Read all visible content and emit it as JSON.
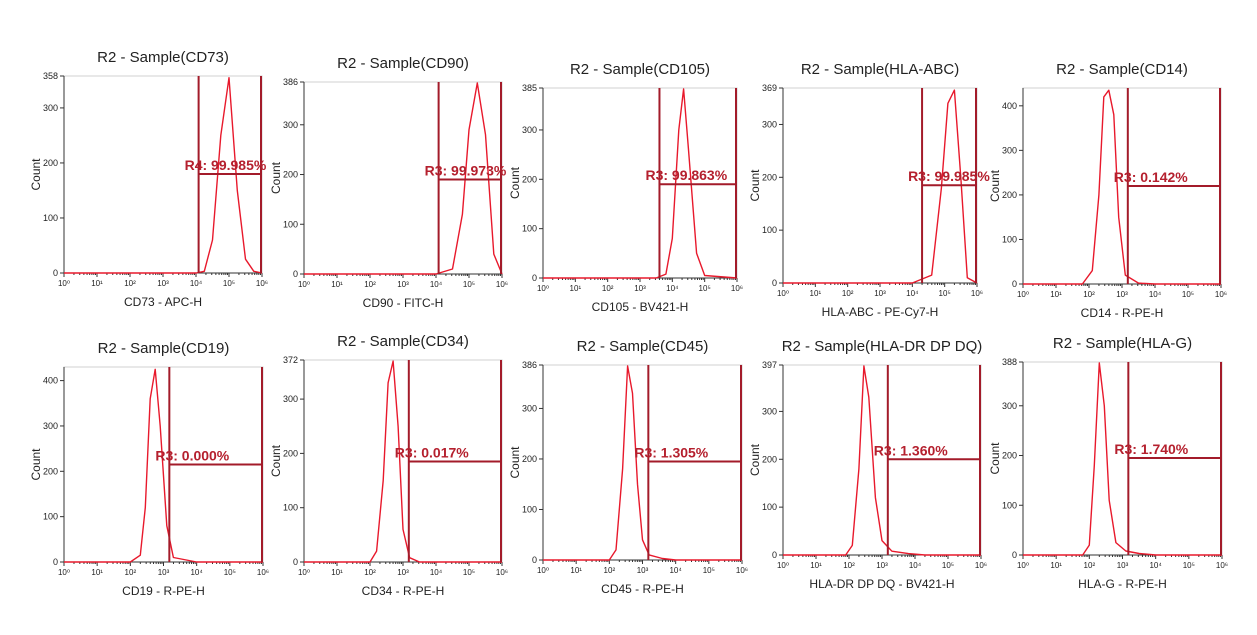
{
  "colors": {
    "histogram": "#e8192c",
    "gate": "#a31b2a",
    "gate_label": "#b5202e",
    "axis": "#333333",
    "text": "#222222"
  },
  "chart_data": [
    {
      "type": "line",
      "title": "R2 - Sample(CD73)",
      "xlabel": "CD73 - APC-H",
      "ylabel": "Count",
      "x_scale": "log",
      "xlim": [
        1,
        1000000
      ],
      "ylim": [
        0,
        358
      ],
      "y_ticks": [
        0,
        100,
        200,
        300
      ],
      "y_max_label": "358",
      "x_tick_labels": [
        "10⁰",
        "10¹",
        "10²",
        "10³",
        "10⁴",
        "10⁵",
        "10⁶"
      ],
      "series": [
        {
          "x_log10": [
            0,
            1,
            2,
            3,
            4,
            4.25,
            4.5,
            4.75,
            5,
            5.25,
            5.5,
            5.75,
            6
          ],
          "y": [
            0,
            0,
            0,
            0,
            0,
            3,
            60,
            250,
            355,
            150,
            25,
            3,
            0
          ]
        }
      ],
      "gate": {
        "name": "R4",
        "label": "R4: 99.985%",
        "x_from": 12000,
        "x_to": 1000000,
        "y_level": 180
      }
    },
    {
      "type": "line",
      "title": "R2 - Sample(CD90)",
      "xlabel": "CD90 - FITC-H",
      "ylabel": "Count",
      "x_scale": "log",
      "xlim": [
        1,
        1000000
      ],
      "ylim": [
        0,
        386
      ],
      "y_ticks": [
        0,
        100,
        200,
        300
      ],
      "y_max_label": "386",
      "x_tick_labels": [
        "10⁰",
        "10¹",
        "10²",
        "10³",
        "10⁴",
        "10⁵",
        "10⁶"
      ],
      "series": [
        {
          "x_log10": [
            0,
            1,
            2,
            3,
            4,
            4.5,
            4.8,
            5,
            5.25,
            5.5,
            5.75,
            6
          ],
          "y": [
            0,
            0,
            0,
            0,
            0,
            10,
            120,
            290,
            384,
            280,
            40,
            0
          ]
        }
      ],
      "gate": {
        "name": "R3",
        "label": "R3: 99.973%",
        "x_from": 12000,
        "x_to": 1000000,
        "y_level": 190
      }
    },
    {
      "type": "line",
      "title": "R2 - Sample(CD105)",
      "xlabel": "CD105 - BV421-H",
      "ylabel": "Count",
      "x_scale": "log",
      "xlim": [
        1,
        1000000
      ],
      "ylim": [
        0,
        385
      ],
      "y_ticks": [
        0,
        100,
        200,
        300
      ],
      "y_max_label": "385",
      "x_tick_labels": [
        "10⁰",
        "10¹",
        "10²",
        "10³",
        "10⁴",
        "10⁵",
        "10⁶"
      ],
      "series": [
        {
          "x_log10": [
            0,
            1,
            2,
            3,
            3.5,
            3.8,
            4,
            4.2,
            4.35,
            4.5,
            4.75,
            5,
            6
          ],
          "y": [
            0,
            0,
            0,
            0,
            0,
            8,
            80,
            300,
            383,
            260,
            50,
            5,
            0
          ]
        }
      ],
      "gate": {
        "name": "R3",
        "label": "R3: 99.863%",
        "x_from": 4000,
        "x_to": 1000000,
        "y_level": 190
      }
    },
    {
      "type": "line",
      "title": "R2 - Sample(HLA-ABC)",
      "xlabel": "HLA-ABC - PE-Cy7-H",
      "ylabel": "Count",
      "x_scale": "log",
      "xlim": [
        1,
        1000000
      ],
      "ylim": [
        0,
        369
      ],
      "y_ticks": [
        0,
        100,
        200,
        300
      ],
      "y_max_label": "369",
      "x_tick_labels": [
        "10⁰",
        "10¹",
        "10²",
        "10³",
        "10⁴",
        "10⁵",
        "10⁶"
      ],
      "series": [
        {
          "x_log10": [
            0,
            1,
            2,
            3,
            4,
            4.6,
            4.9,
            5.1,
            5.3,
            5.5,
            5.7,
            6
          ],
          "y": [
            0,
            0,
            0,
            0,
            0,
            15,
            180,
            340,
            365,
            200,
            10,
            0
          ]
        }
      ],
      "gate": {
        "name": "R3",
        "label": "R3: 99.985%",
        "x_from": 20000,
        "x_to": 1000000,
        "y_level": 185
      }
    },
    {
      "type": "line",
      "title": "R2 - Sample(CD14)",
      "xlabel": "CD14 - R-PE-H",
      "ylabel": "Count",
      "x_scale": "log",
      "xlim": [
        1,
        1000000
      ],
      "ylim": [
        0,
        440
      ],
      "y_ticks": [
        0,
        100,
        200,
        300,
        400
      ],
      "y_max_label": "",
      "x_tick_labels": [
        "10⁰",
        "10¹",
        "10²",
        "10³",
        "10⁴",
        "10⁵",
        "10⁶"
      ],
      "series": [
        {
          "x_log10": [
            0,
            1,
            1.8,
            2.1,
            2.3,
            2.45,
            2.6,
            2.75,
            2.9,
            3.1,
            3.5,
            4,
            6
          ],
          "y": [
            0,
            0,
            0,
            30,
            200,
            420,
            435,
            380,
            150,
            20,
            2,
            0,
            0
          ]
        }
      ],
      "gate": {
        "name": "R3",
        "label": "R3: 0.142%",
        "x_from": 1500,
        "x_to": 1000000,
        "y_level": 220
      }
    },
    {
      "type": "line",
      "title": "R2 - Sample(CD19)",
      "xlabel": "CD19 - R-PE-H",
      "ylabel": "Count",
      "x_scale": "log",
      "xlim": [
        1,
        1000000
      ],
      "ylim": [
        0,
        430
      ],
      "y_ticks": [
        0,
        100,
        200,
        300,
        400
      ],
      "y_max_label": "",
      "x_tick_labels": [
        "10⁰",
        "10¹",
        "10²",
        "10³",
        "10⁴",
        "10⁵",
        "10⁶"
      ],
      "series": [
        {
          "x_log10": [
            0,
            1,
            2,
            2.3,
            2.45,
            2.6,
            2.75,
            2.9,
            3.1,
            3.3,
            4,
            6
          ],
          "y": [
            0,
            0,
            0,
            15,
            120,
            360,
            425,
            300,
            80,
            10,
            0,
            0
          ]
        }
      ],
      "gate": {
        "name": "R3",
        "label": "R3: 0.000%",
        "x_from": 1500,
        "x_to": 1000000,
        "y_level": 215
      }
    },
    {
      "type": "line",
      "title": "R2 - Sample(CD34)",
      "xlabel": "CD34 - R-PE-H",
      "ylabel": "Count",
      "x_scale": "log",
      "xlim": [
        1,
        1000000
      ],
      "ylim": [
        0,
        372
      ],
      "y_ticks": [
        0,
        100,
        200,
        300
      ],
      "y_max_label": "372",
      "x_tick_labels": [
        "10⁰",
        "10¹",
        "10²",
        "10³",
        "10⁴",
        "10⁵",
        "10⁶"
      ],
      "series": [
        {
          "x_log10": [
            0,
            1,
            2,
            2.2,
            2.4,
            2.55,
            2.7,
            2.85,
            3,
            3.2,
            3.5,
            6
          ],
          "y": [
            0,
            0,
            0,
            20,
            150,
            330,
            370,
            250,
            60,
            8,
            0,
            0
          ]
        }
      ],
      "gate": {
        "name": "R3",
        "label": "R3: 0.017%",
        "x_from": 1500,
        "x_to": 1000000,
        "y_level": 185
      }
    },
    {
      "type": "line",
      "title": "R2 - Sample(CD45)",
      "xlabel": "CD45 - R-PE-H",
      "ylabel": "Count",
      "x_scale": "log",
      "xlim": [
        1,
        1000000
      ],
      "ylim": [
        0,
        386
      ],
      "y_ticks": [
        0,
        100,
        200,
        300
      ],
      "y_max_label": "386",
      "x_tick_labels": [
        "10⁰",
        "10¹",
        "10²",
        "10³",
        "10⁴",
        "10⁵",
        "10⁶"
      ],
      "series": [
        {
          "x_log10": [
            0,
            1,
            2,
            2.2,
            2.4,
            2.55,
            2.7,
            2.85,
            3,
            3.2,
            3.6,
            4,
            6
          ],
          "y": [
            0,
            0,
            0,
            20,
            180,
            384,
            330,
            150,
            40,
            10,
            3,
            0,
            0
          ]
        }
      ],
      "gate": {
        "name": "R3",
        "label": "R3: 1.305%",
        "x_from": 1500,
        "x_to": 1000000,
        "y_level": 195
      }
    },
    {
      "type": "line",
      "title": "R2 - Sample(HLA-DR DP DQ)",
      "xlabel": "HLA-DR DP DQ - BV421-H",
      "ylabel": "Count",
      "x_scale": "log",
      "xlim": [
        1,
        1000000
      ],
      "ylim": [
        0,
        397
      ],
      "y_ticks": [
        0,
        100,
        200,
        300
      ],
      "y_max_label": "397",
      "x_tick_labels": [
        "10⁰",
        "10¹",
        "10²",
        "10³",
        "10⁴",
        "10⁵",
        "10⁶"
      ],
      "series": [
        {
          "x_log10": [
            0,
            1,
            1.9,
            2.1,
            2.3,
            2.45,
            2.6,
            2.8,
            3,
            3.3,
            3.8,
            4.3,
            6
          ],
          "y": [
            0,
            0,
            0,
            20,
            180,
            395,
            330,
            120,
            30,
            8,
            3,
            0,
            0
          ]
        }
      ],
      "gate": {
        "name": "R3",
        "label": "R3: 1.360%",
        "x_from": 1500,
        "x_to": 1000000,
        "y_level": 200
      }
    },
    {
      "type": "line",
      "title": "R2 - Sample(HLA-G)",
      "xlabel": "HLA-G - R-PE-H",
      "ylabel": "Count",
      "x_scale": "log",
      "xlim": [
        1,
        1000000
      ],
      "ylim": [
        0,
        388
      ],
      "y_ticks": [
        0,
        100,
        200,
        300
      ],
      "y_max_label": "388",
      "x_tick_labels": [
        "10⁰",
        "10¹",
        "10²",
        "10³",
        "10⁴",
        "10⁵",
        "10⁶"
      ],
      "series": [
        {
          "x_log10": [
            0,
            1,
            1.8,
            2,
            2.15,
            2.3,
            2.45,
            2.6,
            2.8,
            3.1,
            3.5,
            4,
            6
          ],
          "y": [
            0,
            0,
            0,
            20,
            180,
            386,
            300,
            110,
            25,
            8,
            3,
            0,
            0
          ]
        }
      ],
      "gate": {
        "name": "R3",
        "label": "R3: 1.740%",
        "x_from": 1500,
        "x_to": 1000000,
        "y_level": 195
      }
    }
  ]
}
